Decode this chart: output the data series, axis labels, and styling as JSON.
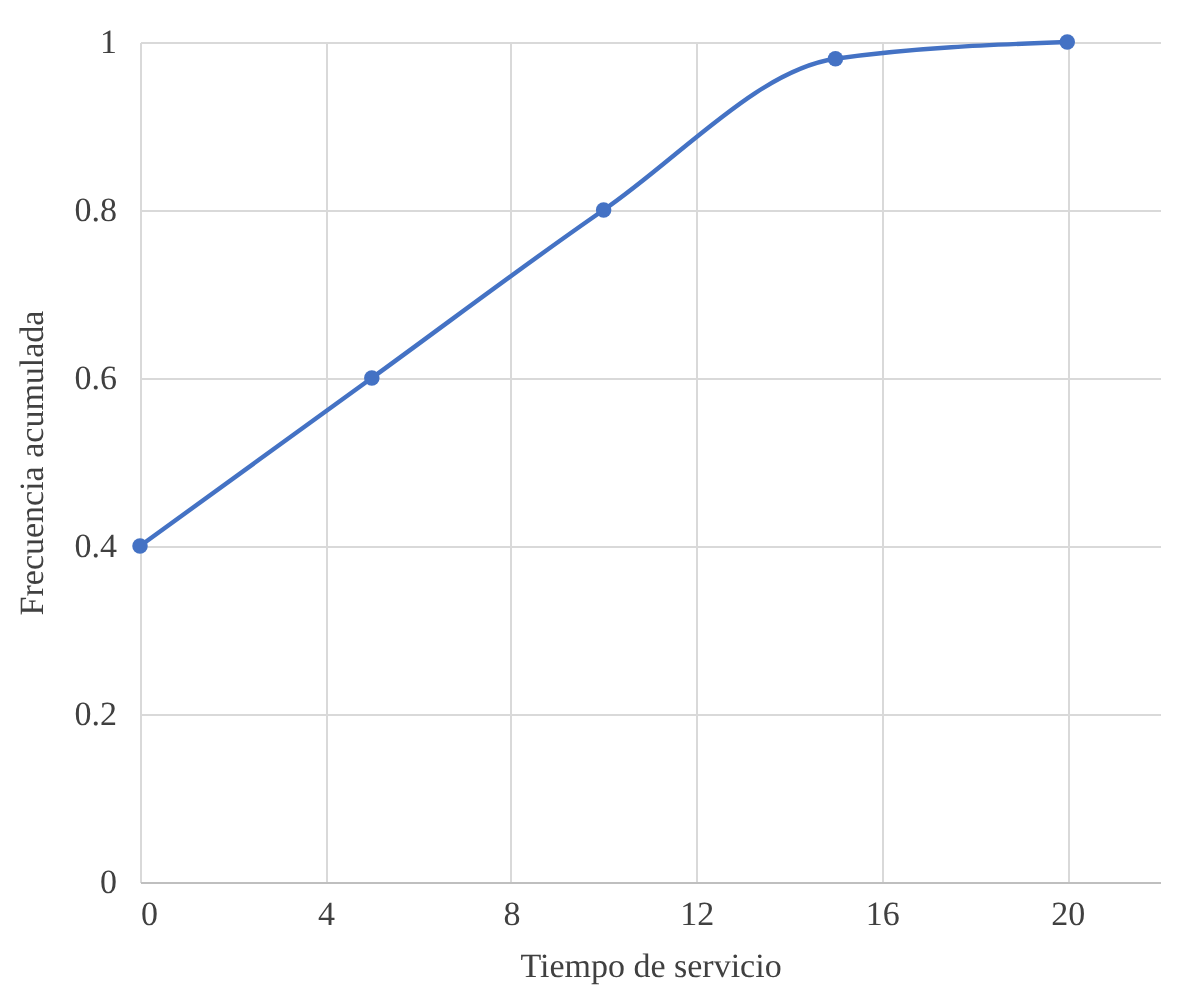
{
  "chart_data": {
    "type": "line",
    "xlabel": "Tiempo de servicio",
    "ylabel": "Frecuencia acumulada",
    "x": [
      0,
      5,
      10,
      15,
      20
    ],
    "series": [
      {
        "color": "#4472c4",
        "values": [
          0.4,
          0.6,
          0.8,
          0.98,
          1
        ]
      }
    ],
    "xlim": [
      0,
      22
    ],
    "xticks": [
      0,
      4,
      8,
      12,
      16,
      20
    ],
    "ylim": [
      0,
      1
    ],
    "yticks": [
      0,
      0.2,
      0.4,
      0.6,
      0.8,
      1
    ],
    "grid": true,
    "marker": "circle",
    "line_style": "solid"
  }
}
